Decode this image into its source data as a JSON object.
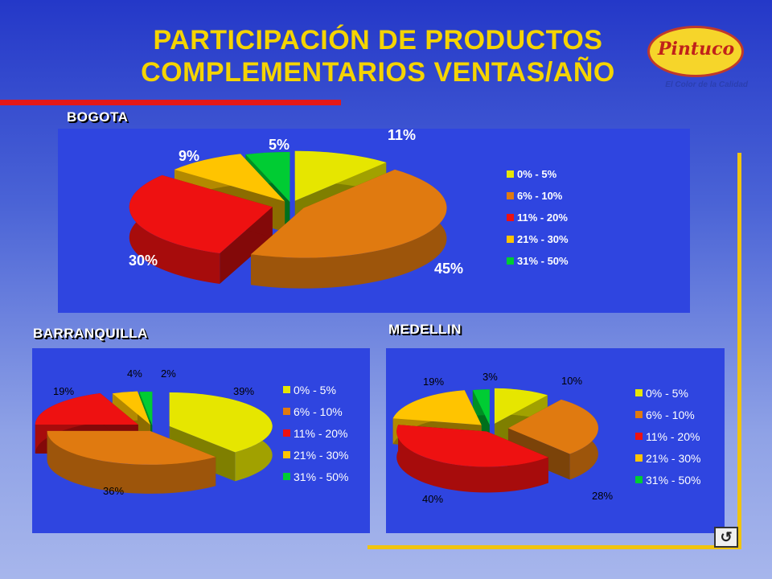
{
  "title": {
    "line1": "PARTICIPACIÓN DE PRODUCTOS",
    "line2": "COMPLEMENTARIOS VENTAS/AÑO"
  },
  "logo": {
    "name": "Pintuco",
    "tagline": "El Color de la Calidad"
  },
  "nav": {
    "return_glyph": "↺"
  },
  "colors": {
    "yellow": "#e6e600",
    "orange": "#e07a10",
    "red": "#ee1111",
    "gold": "#ffc400",
    "green": "#00cc33",
    "panel": "#2f45e0",
    "title": "#f5d400"
  },
  "chart_data": [
    {
      "type": "pie",
      "title": "BOGOTA",
      "categories": [
        "0% - 5%",
        "6% - 10%",
        "11% - 20%",
        "21% - 30%",
        "31% - 50%"
      ],
      "values": [
        11,
        45,
        30,
        9,
        5
      ],
      "labels": [
        "11%",
        "45%",
        "30%",
        "9%",
        "5%"
      ],
      "legend_position": "right"
    },
    {
      "type": "pie",
      "title": "BARRANQUILLA",
      "categories": [
        "0% - 5%",
        "6% - 10%",
        "11% - 20%",
        "21% - 30%",
        "31% - 50%"
      ],
      "values": [
        39,
        36,
        19,
        4,
        2
      ],
      "labels": [
        "39%",
        "36%",
        "19%",
        "4%",
        "2%"
      ],
      "legend_position": "right"
    },
    {
      "type": "pie",
      "title": "MEDELLIN",
      "categories": [
        "0% - 5%",
        "6% - 10%",
        "11% - 20%",
        "21% - 30%",
        "31% - 50%"
      ],
      "values": [
        10,
        28,
        40,
        19,
        3
      ],
      "labels": [
        "10%",
        "28%",
        "40%",
        "19%",
        "3%"
      ],
      "legend_position": "right"
    }
  ]
}
